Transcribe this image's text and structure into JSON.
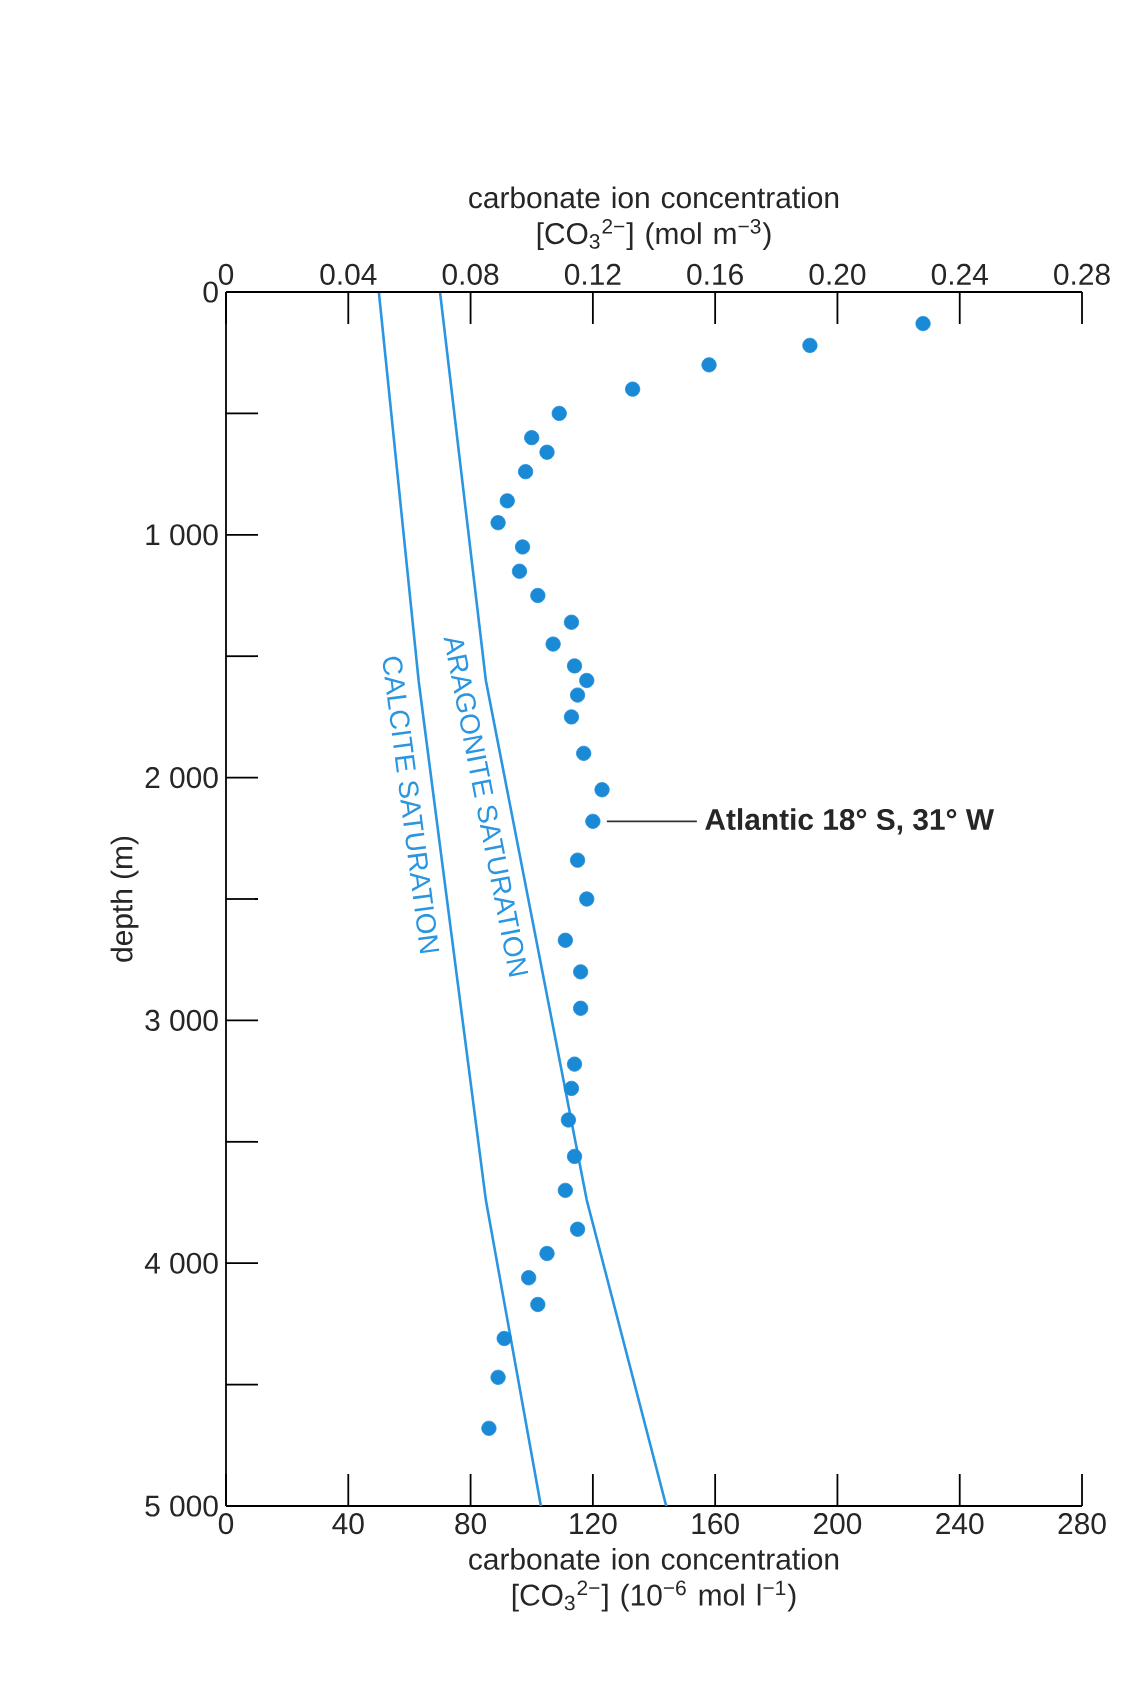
{
  "chart_data": {
    "type": "scatter",
    "xlabel": "carbonate ion concentration [CO$_{3}$$^{2−}$] (10$^{−6}$ mol l$^{−1}$)",
    "x2label": "carbonate ion concentration [CO$_{3}$$^{2−}$] (mol m$^{−3}$)",
    "ylabel": "depth (m)",
    "xlim": [
      0,
      280
    ],
    "xticks": [
      0,
      40,
      80,
      120,
      160,
      200,
      240,
      280
    ],
    "x2lim": [
      0,
      0.28
    ],
    "x2ticks": [
      0,
      0.04,
      0.08,
      0.12,
      0.16,
      {
        "value": 0.2,
        "label": "0.20"
      },
      0.24,
      0.28
    ],
    "ylim": [
      5000,
      0
    ],
    "yticks": [
      {
        "value": 0,
        "label": "0"
      },
      {
        "value": 500,
        "label": null
      },
      {
        "value": 1000,
        "label": "1 000"
      },
      {
        "value": 1500,
        "label": null
      },
      {
        "value": 2000,
        "label": "2 000"
      },
      {
        "value": 2500,
        "label": null
      },
      {
        "value": 3000,
        "label": "3 000"
      },
      {
        "value": 3500,
        "label": null
      },
      {
        "value": 4000,
        "label": "4 000"
      },
      {
        "value": 4500,
        "label": null
      },
      {
        "value": 5000,
        "label": "5 000"
      }
    ],
    "series": [
      {
        "color": "#1a8ad6",
        "marker": "circle",
        "x": [
          228,
          191,
          158,
          133,
          109,
          100,
          105,
          98,
          92,
          89,
          97,
          96,
          102,
          113,
          107,
          114,
          118,
          115,
          113,
          117,
          123,
          120,
          115,
          118,
          111,
          116,
          116,
          114,
          113,
          112,
          114,
          111,
          115,
          105,
          99,
          102,
          91,
          89,
          86
        ],
        "values": [
          130,
          220,
          300,
          400,
          500,
          600,
          660,
          740,
          860,
          950,
          1050,
          1150,
          1250,
          1360,
          1450,
          1540,
          1600,
          1660,
          1750,
          1900,
          2050,
          2180,
          2340,
          2500,
          2670,
          2800,
          2950,
          3180,
          3280,
          3410,
          3560,
          3700,
          3860,
          3960,
          4060,
          4170,
          4310,
          4470,
          4680
        ]
      },
      {
        "type": "line",
        "name": "ARAGONITE SATURATION",
        "color": "#2a95e0",
        "marker": "none",
        "line_style": "solid",
        "x": [
          70,
          85,
          118,
          144
        ],
        "values": [
          0,
          1600,
          3740,
          5000
        ]
      },
      {
        "type": "line",
        "name": "CALCITE SATURATION",
        "color": "#2a95e0",
        "marker": "none",
        "line_style": "solid",
        "x": [
          50,
          63,
          85,
          103
        ],
        "values": [
          0,
          1600,
          3740,
          5000
        ]
      }
    ],
    "annotations": [
      {
        "text": "Atlantic 18° S, 31° W",
        "x": 120,
        "y": 2180
      }
    ]
  }
}
